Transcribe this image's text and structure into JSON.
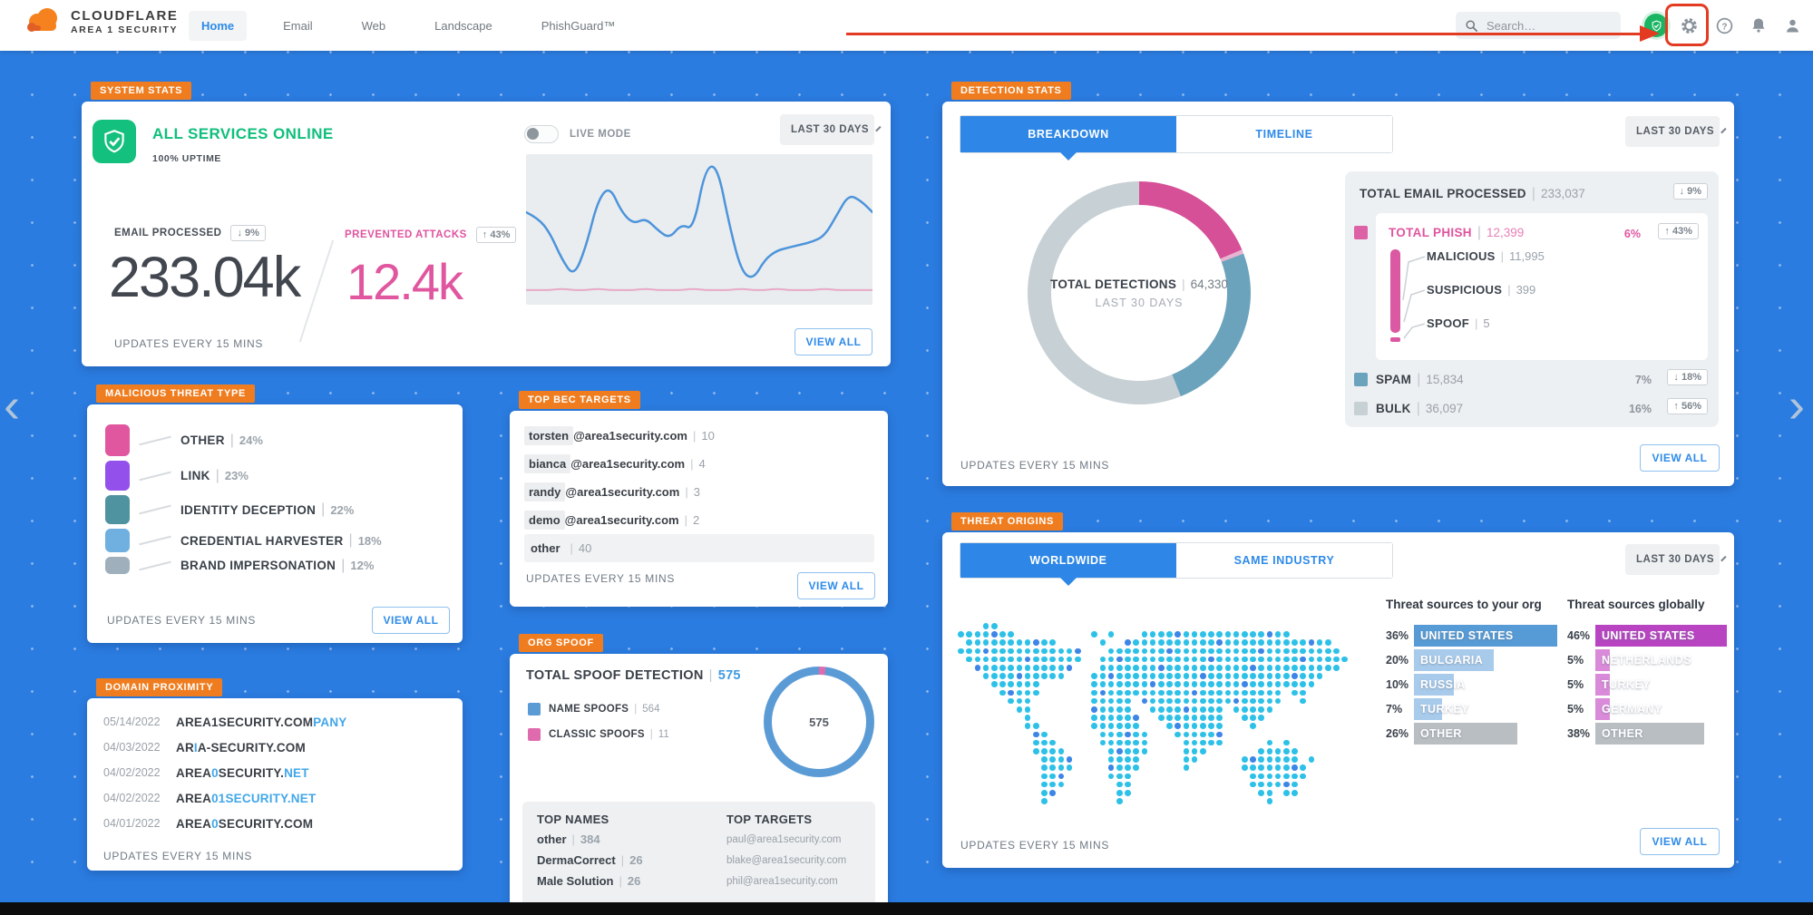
{
  "nav": {
    "brand_line1": "CLOUDFLARE",
    "brand_line2": "AREA 1 SECURITY",
    "tabs": [
      {
        "label": "Home",
        "active": true
      },
      {
        "label": "Email",
        "active": false
      },
      {
        "label": "Web",
        "active": false
      },
      {
        "label": "Landscape",
        "active": false
      },
      {
        "label": "PhishGuard™",
        "active": false
      }
    ],
    "search_placeholder": "Search…"
  },
  "common": {
    "updates": "UPDATES EVERY 15 MINS",
    "view_all": "VIEW ALL"
  },
  "cards": {
    "system_stats": {
      "badge": "SYSTEM STATS",
      "status": "ALL SERVICES ONLINE",
      "uptime": "100% UPTIME",
      "live_mode": "LIVE MODE",
      "period": "LAST 30 DAYS",
      "email": {
        "label": "EMAIL PROCESSED",
        "delta": "↓ 9%",
        "value": "233.04k"
      },
      "prevented": {
        "label": "PREVENTED ATTACKS",
        "delta": "↑ 43%",
        "value": "12.4k"
      }
    },
    "malicious_threat_type": {
      "badge": "MALICIOUS THREAT TYPE"
    },
    "domain_proximity": {
      "badge": "DOMAIN PROXIMITY",
      "rows": [
        {
          "date": "05/14/2022",
          "parts": [
            {
              "t": "AREA1SECURITY.COM"
            },
            {
              "t": "PANY",
              "hl": true
            }
          ]
        },
        {
          "date": "04/03/2022",
          "parts": [
            {
              "t": "AR"
            },
            {
              "t": "I",
              "hl": true
            },
            {
              "t": "A-SECURITY.COM"
            }
          ]
        },
        {
          "date": "04/02/2022",
          "parts": [
            {
              "t": "AREA"
            },
            {
              "t": "0",
              "hl": true
            },
            {
              "t": "SECURITY."
            },
            {
              "t": "NET",
              "hl": true
            }
          ]
        },
        {
          "date": "04/02/2022",
          "parts": [
            {
              "t": "AREA"
            },
            {
              "t": "01SECURITY.NET",
              "hl": true
            }
          ]
        },
        {
          "date": "04/01/2022",
          "parts": [
            {
              "t": "AREA"
            },
            {
              "t": "0",
              "hl": true
            },
            {
              "t": "SECURITY.COM"
            }
          ]
        }
      ]
    },
    "bec": {
      "badge": "TOP BEC TARGETS",
      "rows": [
        {
          "user": "torsten",
          "rest": "@area1security.com",
          "value": "10",
          "full": false
        },
        {
          "user": "bianca",
          "rest": "@area1security.com",
          "value": "4",
          "full": false
        },
        {
          "user": "randy",
          "rest": "@area1security.com",
          "value": "3",
          "full": false
        },
        {
          "user": "demo",
          "rest": "@area1security.com",
          "value": "2",
          "full": false
        },
        {
          "user": "other",
          "rest": "",
          "value": "40",
          "full": true
        }
      ]
    },
    "org_spoof": {
      "badge": "ORG SPOOF",
      "title_label": "TOTAL SPOOF DETECTION",
      "title_value": "575",
      "legend": [
        {
          "label": "NAME SPOOFS",
          "value": "564",
          "color": "#5b9bd5"
        },
        {
          "label": "CLASSIC SPOOFS",
          "value": "11",
          "color": "#e06aae"
        }
      ],
      "donut_center": "575",
      "top_names_header": "TOP NAMES",
      "top_names": [
        {
          "name": "other",
          "value": "384"
        },
        {
          "name": "DermaCorrect",
          "value": "26"
        },
        {
          "name": "Male Solution",
          "value": "26"
        }
      ],
      "top_targets_header": "TOP TARGETS",
      "top_targets": [
        "paul@area1security.com",
        "blake@area1security.com",
        "phil@area1security.com"
      ]
    },
    "detection": {
      "badge": "DETECTION STATS",
      "tabs": [
        {
          "label": "BREAKDOWN",
          "active": true
        },
        {
          "label": "TIMELINE",
          "active": false
        }
      ],
      "period": "LAST 30 DAYS",
      "donut": {
        "label": "TOTAL DETECTIONS",
        "value": "64,330",
        "sub": "LAST 30 DAYS"
      },
      "panel": {
        "total": {
          "label": "TOTAL EMAIL PROCESSED",
          "value": "233,037",
          "badge": "↓ 9%"
        },
        "phish": {
          "label": "TOTAL PHISH",
          "value": "12,399",
          "pct": "6%",
          "badge": "↑ 43%",
          "subs": [
            {
              "label": "MALICIOUS",
              "value": "11,995"
            },
            {
              "label": "SUSPICIOUS",
              "value": "399"
            },
            {
              "label": "SPOOF",
              "value": "5"
            }
          ]
        },
        "spam": {
          "label": "SPAM",
          "value": "15,834",
          "pct": "7%",
          "badge": "↓ 18%"
        },
        "bulk": {
          "label": "BULK",
          "value": "36,097",
          "pct": "16%",
          "badge": "↑ 56%"
        }
      }
    },
    "threat_origins": {
      "badge": "THREAT ORIGINS",
      "tabs": [
        {
          "label": "WORLDWIDE",
          "active": true
        },
        {
          "label": "SAME INDUSTRY",
          "active": false
        }
      ],
      "period": "LAST 30 DAYS",
      "org_header": "Threat sources to your org",
      "global_header": "Threat sources globally"
    }
  },
  "chart_data": [
    {
      "id": "system-activity-sparkline",
      "type": "line",
      "axes_hidden": true,
      "series": [
        {
          "name": "email-processed",
          "color": "#4d94db",
          "approx_values": [
            58,
            54,
            44,
            26,
            14,
            34,
            66,
            76,
            58,
            50,
            54,
            46,
            40,
            50,
            46,
            88,
            90,
            50,
            18,
            12,
            26,
            32,
            34,
            36,
            38,
            42,
            56,
            70,
            66,
            58
          ]
        },
        {
          "name": "prevented-attacks",
          "color": "#e8a9c8",
          "approx_values": [
            5,
            5,
            5,
            6,
            5,
            5,
            6,
            5,
            5,
            5,
            6,
            5,
            5,
            5,
            6,
            5,
            5,
            5,
            6,
            5,
            5,
            6,
            5,
            5,
            5,
            6,
            5,
            5,
            5,
            5
          ]
        }
      ]
    },
    {
      "id": "malicious-threat-type",
      "type": "bar",
      "unit": "%",
      "categories": [
        "OTHER",
        "LINK",
        "IDENTITY DECEPTION",
        "CREDENTIAL HARVESTER",
        "BRAND IMPERSONATION"
      ],
      "values": [
        24,
        23,
        22,
        18,
        12
      ],
      "colors": [
        "#e0579f",
        "#9350ea",
        "#4f93a0",
        "#6fb0e0",
        "#9fb0bc"
      ]
    },
    {
      "id": "detection-breakdown-donut",
      "type": "pie",
      "title": "TOTAL DETECTIONS",
      "total": 64330,
      "period": "LAST 30 DAYS",
      "slices": [
        {
          "label": "TOTAL PHISH",
          "value": 12399,
          "color": "#d65097"
        },
        {
          "label": "SPAM",
          "value": 15834,
          "color": "#6ba3bd"
        },
        {
          "label": "BULK",
          "value": 36097,
          "color": "#c7d0d4"
        }
      ]
    },
    {
      "id": "org-spoof-donut",
      "type": "pie",
      "total": 575,
      "slices": [
        {
          "label": "CLASSIC SPOOFS",
          "value": 11,
          "color": "#e06aae"
        },
        {
          "label": "NAME SPOOFS",
          "value": 564,
          "color": "#5b9bd5"
        }
      ]
    },
    {
      "id": "threat-origins-bars",
      "type": "bar",
      "unit": "%",
      "groups": [
        {
          "title": "Threat sources to your org",
          "categories": [
            "UNITED STATES",
            "BULGARIA",
            "RUSSIA",
            "TURKEY",
            "OTHER"
          ],
          "values": [
            36,
            20,
            10,
            7,
            26
          ]
        },
        {
          "title": "Threat sources globally",
          "categories": [
            "UNITED STATES",
            "NETHERLANDS",
            "TURKEY",
            "GERMANY",
            "OTHER"
          ],
          "values": [
            46,
            5,
            5,
            5,
            38
          ]
        }
      ]
    }
  ]
}
